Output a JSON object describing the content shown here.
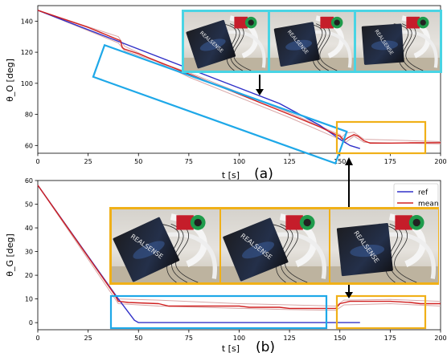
{
  "chart_data": [
    {
      "type": "line",
      "panel_label": "(a)",
      "ylabel": "θ_O [deg]",
      "xlabel": "t [s]",
      "xlim": [
        0,
        200
      ],
      "ylim": [
        55,
        150
      ],
      "xticks": [
        0,
        25,
        50,
        75,
        100,
        125,
        150,
        175,
        200
      ],
      "yticks": [
        60,
        80,
        100,
        120,
        140
      ],
      "grid": false,
      "series": [
        {
          "name": "ref",
          "color": "#3030c8",
          "points": [
            [
              0,
              147
            ],
            [
              40,
              127
            ],
            [
              90,
              102
            ],
            [
              120,
              87
            ],
            [
              140,
              73
            ],
            [
              150,
              64
            ],
            [
              155,
              60
            ],
            [
              160,
              58
            ]
          ]
        },
        {
          "name": "mean",
          "color": "#d02020",
          "points": [
            [
              0,
              147
            ],
            [
              25,
              136
            ],
            [
              40,
              128
            ],
            [
              41,
              127.5
            ],
            [
              42,
              123
            ],
            [
              43,
              122
            ],
            [
              50,
              119
            ],
            [
              75,
              106
            ],
            [
              100,
              93
            ],
            [
              125,
              80
            ],
            [
              140,
              72
            ],
            [
              148,
              67
            ],
            [
              150,
              66
            ],
            [
              152,
              63
            ],
            [
              154,
              65
            ],
            [
              157,
              67
            ],
            [
              159,
              66
            ],
            [
              162,
              63
            ],
            [
              165,
              61.5
            ],
            [
              175,
              61.5
            ],
            [
              185,
              61.7
            ],
            [
              200,
              61.8
            ]
          ]
        },
        {
          "name": "",
          "color": "#d8a6a6",
          "points": [
            [
              0,
              147
            ],
            [
              40,
              130
            ],
            [
              43,
              124
            ],
            [
              75,
              104
            ],
            [
              100,
              91
            ],
            [
              125,
              78
            ],
            [
              148,
              65
            ],
            [
              150,
              64
            ],
            [
              153,
              68
            ],
            [
              157,
              68.5
            ],
            [
              162,
              64
            ],
            [
              200,
              62.5
            ]
          ]
        },
        {
          "name": "",
          "color": "#d8a6a6",
          "points": [
            [
              0,
              147
            ],
            [
              40,
              126
            ],
            [
              43,
              121
            ],
            [
              75,
              107
            ],
            [
              100,
              94
            ],
            [
              125,
              81
            ],
            [
              148,
              68
            ],
            [
              150,
              67
            ],
            [
              153,
              62
            ],
            [
              157,
              66
            ],
            [
              162,
              62
            ],
            [
              200,
              61
            ]
          ]
        }
      ]
    },
    {
      "type": "line",
      "panel_label": "(b)",
      "ylabel": "θ_G [deg]",
      "xlabel": "t [s]",
      "xlim": [
        0,
        200
      ],
      "ylim": [
        -3,
        60
      ],
      "xticks": [
        0,
        25,
        50,
        75,
        100,
        125,
        150,
        175,
        200
      ],
      "yticks": [
        0,
        10,
        20,
        30,
        40,
        50,
        60
      ],
      "grid": false,
      "legend": "top-right",
      "series": [
        {
          "name": "ref",
          "color": "#3030c8",
          "points": [
            [
              0,
              58
            ],
            [
              40,
              10
            ],
            [
              48,
              1
            ],
            [
              50,
              0
            ],
            [
              160,
              0
            ]
          ]
        },
        {
          "name": "mean",
          "color": "#d02020",
          "points": [
            [
              0,
              58
            ],
            [
              38,
              12
            ],
            [
              40,
              9
            ],
            [
              45,
              8.5
            ],
            [
              60,
              8
            ],
            [
              65,
              7
            ],
            [
              100,
              7
            ],
            [
              105,
              6.5
            ],
            [
              120,
              6.5
            ],
            [
              125,
              6
            ],
            [
              148,
              6
            ],
            [
              150,
              8
            ],
            [
              155,
              9
            ],
            [
              175,
              9
            ],
            [
              185,
              8.5
            ],
            [
              190,
              8
            ],
            [
              200,
              8
            ]
          ]
        },
        {
          "name": "",
          "color": "#d8a6a6",
          "points": [
            [
              0,
              58
            ],
            [
              40,
              10
            ],
            [
              60,
              9.5
            ],
            [
              100,
              8
            ],
            [
              125,
              7.5
            ],
            [
              148,
              7
            ],
            [
              152,
              9.5
            ],
            [
              175,
              9.8
            ],
            [
              200,
              9
            ]
          ]
        },
        {
          "name": "",
          "color": "#d8a6a6",
          "points": [
            [
              0,
              58
            ],
            [
              40,
              8
            ],
            [
              60,
              7
            ],
            [
              100,
              6
            ],
            [
              125,
              5.5
            ],
            [
              148,
              5.2
            ],
            [
              152,
              7.5
            ],
            [
              175,
              8
            ],
            [
              200,
              7
            ]
          ]
        }
      ]
    }
  ],
  "colors": {
    "callout_blue": "#1ea8e8",
    "callout_orange": "#f0b018",
    "frame_cyan": "#49d4e4",
    "ref": "#3030c8",
    "mean": "#d02020"
  },
  "photo_insets": {
    "top_row_count": 3,
    "bottom_row_count": 3,
    "box_brand_text": "REALSENSE"
  },
  "legend_entries": [
    "ref",
    "mean"
  ]
}
